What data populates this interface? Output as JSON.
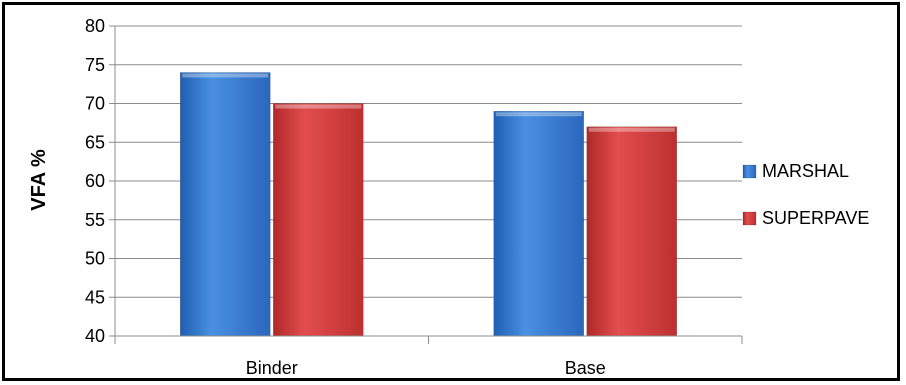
{
  "chart_data": {
    "type": "bar",
    "categories": [
      "Binder",
      "Base"
    ],
    "series": [
      {
        "name": "MARSHAL",
        "values": [
          74,
          69
        ],
        "color": "#3a7fd5"
      },
      {
        "name": "SUPERPAVE",
        "values": [
          70,
          67
        ],
        "color": "#d63b3b"
      }
    ],
    "title": "",
    "xlabel": "",
    "ylabel": "VFA %",
    "ylim": [
      40,
      80
    ],
    "yticks": [
      40,
      45,
      50,
      55,
      60,
      65,
      70,
      75,
      80
    ],
    "grid": true,
    "legend_position": "right"
  }
}
